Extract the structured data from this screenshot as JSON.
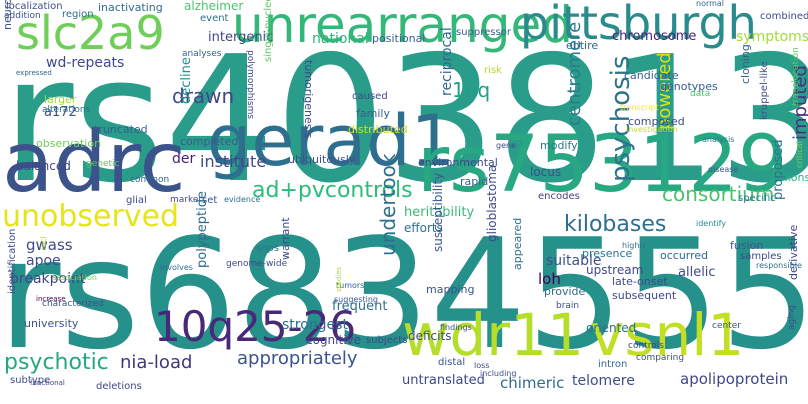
{
  "word_cloud": {
    "words": [
      {
        "text": "rs4038131",
        "color": "#2a9d8a"
      },
      {
        "text": "rs6834555",
        "color": "#26908b"
      },
      {
        "text": "adrc",
        "color": "#3b528b"
      },
      {
        "text": "gerad1",
        "color": "#2f6f8e"
      },
      {
        "text": "rs753129",
        "color": "#27a882"
      },
      {
        "text": "unrearranged",
        "color": "#35b779"
      },
      {
        "text": "pittsburgh",
        "color": "#2a8b8c"
      },
      {
        "text": "slc2a9",
        "color": "#6ece58"
      },
      {
        "text": "wdr11",
        "color": "#b5de2b"
      },
      {
        "text": "vsnl1",
        "color": "#c2df23"
      },
      {
        "text": "10q25-26",
        "color": "#482979"
      },
      {
        "text": "unobserved",
        "color": "#e7e419"
      },
      {
        "text": "ad+pvcontrols",
        "color": "#2dbb7b"
      },
      {
        "text": "appropriately",
        "color": "#3a548c"
      },
      {
        "text": "institute",
        "color": "#3e4a89"
      },
      {
        "text": "consortium",
        "color": "#4ac16d"
      },
      {
        "text": "psychosis",
        "color": "#2c728e"
      },
      {
        "text": "centromere",
        "color": "#2a7b8e"
      },
      {
        "text": "undertook",
        "color": "#2d708e"
      },
      {
        "text": "kilobases",
        "color": "#2e6e8e"
      },
      {
        "text": "psychotic",
        "color": "#26a784"
      },
      {
        "text": "nia-load",
        "color": "#40377f"
      },
      {
        "text": "drawn",
        "color": "#3f4889"
      },
      {
        "text": "10q",
        "color": "#1f9e89"
      },
      {
        "text": "powered",
        "color": "#d8e219"
      },
      {
        "text": "imputed",
        "color": "#46307e"
      },
      {
        "text": "chromosome",
        "color": "#482475"
      },
      {
        "text": "national",
        "color": "#2fb47c"
      },
      {
        "text": "intergenic",
        "color": "#3f4788"
      },
      {
        "text": "wd-repeats",
        "color": "#3e4989"
      },
      {
        "text": "a172",
        "color": "#38598c"
      },
      {
        "text": "alzheimer",
        "color": "#4cc26c"
      },
      {
        "text": "event",
        "color": "#2c718e"
      },
      {
        "text": "positional",
        "color": "#35608d"
      },
      {
        "text": "region",
        "color": "#2f6c8e"
      },
      {
        "text": "inactivating",
        "color": "#2e6d8e"
      },
      {
        "text": "localization",
        "color": "#3c4f8a"
      },
      {
        "text": "addition",
        "color": "#3b518b"
      },
      {
        "text": "combined",
        "color": "#3e4c8a"
      },
      {
        "text": "normal",
        "color": "#33638d"
      },
      {
        "text": "suppressor",
        "color": "#365d8d"
      },
      {
        "text": "symptoms",
        "color": "#a5db36"
      },
      {
        "text": "entire",
        "color": "#31668e"
      },
      {
        "text": "candidate",
        "color": "#355f8d"
      },
      {
        "text": "genotypes",
        "color": "#365c8d"
      },
      {
        "text": "composed",
        "color": "#3e4c8a"
      },
      {
        "text": "cloning",
        "color": "#355f8d"
      },
      {
        "text": "kruppel-like",
        "color": "#3d4e8a"
      },
      {
        "text": "translocation",
        "color": "#5ec962"
      },
      {
        "text": "data",
        "color": "#4cc26c"
      },
      {
        "text": "transcript",
        "color": "#fde725"
      },
      {
        "text": "investigation",
        "color": "#c0df25"
      },
      {
        "text": "analysis",
        "color": "#2a768e"
      },
      {
        "text": "critical",
        "color": "#7ad151"
      },
      {
        "text": "exons",
        "color": "#29af7f"
      },
      {
        "text": "specific",
        "color": "#29798e"
      },
      {
        "text": "disease",
        "color": "#39568c"
      },
      {
        "text": "gene",
        "color": "#3f4889"
      },
      {
        "text": "risk",
        "color": "#b2dd2d"
      },
      {
        "text": "caused",
        "color": "#3e4989"
      },
      {
        "text": "family",
        "color": "#32648e"
      },
      {
        "text": "distributed",
        "color": "#cde11d"
      },
      {
        "text": "reciprocal",
        "color": "#31688e"
      },
      {
        "text": "modify",
        "color": "#2a788e"
      },
      {
        "text": "tumorigenesis",
        "color": "#3e4a89"
      },
      {
        "text": "polymorphisms",
        "color": "#3f4788"
      },
      {
        "text": "single-nucleotide",
        "color": "#5cc863"
      },
      {
        "text": "analyses",
        "color": "#34618d"
      },
      {
        "text": "neurodegeneration",
        "color": "#3b528b"
      },
      {
        "text": "expressed",
        "color": "#33638d"
      },
      {
        "text": "larger",
        "color": "#a0da39"
      },
      {
        "text": "alterations",
        "color": "#2e6f8e"
      },
      {
        "text": "observation",
        "color": "#6ccd5a"
      },
      {
        "text": "truncated",
        "color": "#355e8d"
      },
      {
        "text": "decline",
        "color": "#21908d"
      },
      {
        "text": "completed",
        "color": "#365c8d"
      },
      {
        "text": "ubiquitously",
        "color": "#3b528b"
      },
      {
        "text": "genetic",
        "color": "#58c765"
      },
      {
        "text": "der",
        "color": "#482173"
      },
      {
        "text": "balanced",
        "color": "#3f4788"
      },
      {
        "text": "environmental",
        "color": "#3e4a89"
      },
      {
        "text": "locus",
        "color": "#3d4d8a"
      },
      {
        "text": "rapid",
        "color": "#33628d"
      },
      {
        "text": "heritability",
        "color": "#38b977"
      },
      {
        "text": "efforts",
        "color": "#2c728e"
      },
      {
        "text": "common",
        "color": "#32658e"
      },
      {
        "text": "marker",
        "color": "#3f4889"
      },
      {
        "text": "glial",
        "color": "#3c4f8a"
      },
      {
        "text": "evidence",
        "color": "#2d708e"
      },
      {
        "text": "set",
        "color": "#3b528b"
      },
      {
        "text": "gwass",
        "color": "#3e4a89"
      },
      {
        "text": "apoe",
        "color": "#3d4e8a"
      },
      {
        "text": "breakpoint",
        "color": "#404688"
      },
      {
        "text": "encodes",
        "color": "#404387"
      },
      {
        "text": "proposed",
        "color": "#2d718e"
      },
      {
        "text": "derivative",
        "color": "#3f4788"
      },
      {
        "text": "responsible",
        "color": "#2d708e"
      },
      {
        "text": "fusion",
        "color": "#375a8c"
      },
      {
        "text": "samples",
        "color": "#3e4989"
      },
      {
        "text": "aging",
        "color": "#3d4e8a"
      },
      {
        "text": "identify",
        "color": "#228c8d"
      },
      {
        "text": "highly",
        "color": "#2a768e"
      },
      {
        "text": "allelic",
        "color": "#3e4a89"
      },
      {
        "text": "late-onset",
        "color": "#3f4889"
      },
      {
        "text": "occurred",
        "color": "#32658e"
      },
      {
        "text": "presence",
        "color": "#2c718e"
      },
      {
        "text": "upstream",
        "color": "#3f4889"
      },
      {
        "text": "mapping",
        "color": "#3b528b"
      },
      {
        "text": "snps",
        "color": "#2a788e"
      },
      {
        "text": "genome-wide",
        "color": "#3e4989"
      },
      {
        "text": "involves",
        "color": "#2f6b8e"
      },
      {
        "text": "loci",
        "color": "#a8db34"
      },
      {
        "text": "association",
        "color": "#6ece58"
      },
      {
        "text": "identification",
        "color": "#3d4e8a"
      },
      {
        "text": "increase",
        "color": "#440154"
      },
      {
        "text": "characterized",
        "color": "#3b528b"
      },
      {
        "text": "university",
        "color": "#3b528b"
      },
      {
        "text": "subtype",
        "color": "#3d4e8a"
      },
      {
        "text": "functional",
        "color": "#3f4788"
      },
      {
        "text": "deletions",
        "color": "#404688"
      },
      {
        "text": "polypeptide",
        "color": "#2f6c8e"
      },
      {
        "text": "warrant",
        "color": "#3e4c8a"
      },
      {
        "text": "tumors",
        "color": "#32658e"
      },
      {
        "text": "studies",
        "color": "#addc30"
      },
      {
        "text": "suggesting",
        "color": "#38598c"
      },
      {
        "text": "strongest",
        "color": "#2e6f8e"
      },
      {
        "text": "cognitive",
        "color": "#3f4889"
      },
      {
        "text": "frequent",
        "color": "#2d718e"
      },
      {
        "text": "subjects",
        "color": "#3f4788"
      },
      {
        "text": "deficits",
        "color": "#3e4989"
      },
      {
        "text": "findings",
        "color": "#3d4e8a"
      },
      {
        "text": "susceptibility",
        "color": "#38598c"
      },
      {
        "text": "glioblastoma",
        "color": "#3f4889"
      },
      {
        "text": "appeared",
        "color": "#2c718e"
      },
      {
        "text": "suitable",
        "color": "#3b528b"
      },
      {
        "text": "loh",
        "color": "#440154"
      },
      {
        "text": "provide",
        "color": "#2f6c8e"
      },
      {
        "text": "brain",
        "color": "#3e4c8a"
      },
      {
        "text": "subsequent",
        "color": "#3f4788"
      },
      {
        "text": "oriented",
        "color": "#2e6e8e"
      },
      {
        "text": "center",
        "color": "#3b528b"
      },
      {
        "text": "controls",
        "color": "#3f4788"
      },
      {
        "text": "comparing",
        "color": "#3d4e8a"
      },
      {
        "text": "intron",
        "color": "#32658e"
      },
      {
        "text": "loss",
        "color": "#3f4889"
      },
      {
        "text": "including",
        "color": "#3e4a89"
      },
      {
        "text": "distal",
        "color": "#3b528b"
      },
      {
        "text": "untranslated",
        "color": "#3e4989"
      },
      {
        "text": "chimeric",
        "color": "#2f6c8e"
      },
      {
        "text": "telomere",
        "color": "#3d4e8a"
      },
      {
        "text": "apolipoprotein",
        "color": "#3f4788"
      }
    ]
  }
}
